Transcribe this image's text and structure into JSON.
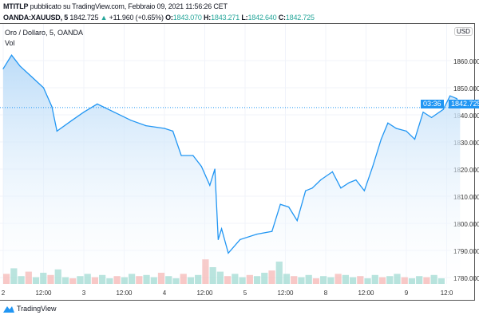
{
  "header": {
    "author": "MTITLP",
    "published": "pubblicato su TradingView.com, Febbraio 09, 2021 11:56:26 CET",
    "symbol": "OANDA:XAUUSD, 5",
    "last": "1842.725",
    "change": "+11.960 (+0.65%)",
    "o_label": "O:",
    "o": "1843.070",
    "h_label": "H:",
    "h": "1843.271",
    "l_label": "L:",
    "l": "1842.640",
    "c_label": "C:",
    "c": "1842.725"
  },
  "legend": {
    "title": "Oro / Dollaro, 5, OANDA",
    "vol": "Vol"
  },
  "currency": "USD",
  "price_label": "1842.725",
  "countdown": "03:36",
  "footer": {
    "brand": "TradingView"
  },
  "colors": {
    "line": "#2196f3",
    "fill": "#cfe6fb",
    "vol_up": "#8fd3c9",
    "vol_down": "#f4a9a6"
  },
  "chart_data": {
    "type": "area",
    "ylim": [
      1777,
      1872
    ],
    "yticks": [
      1780,
      1790,
      1800,
      1810,
      1820,
      1830,
      1840,
      1850,
      1860
    ],
    "xticks": [
      "2",
      "12:00",
      "3",
      "12:00",
      "4",
      "12:00",
      "5",
      "12:00",
      "8",
      "12:00",
      "9",
      "12:0"
    ],
    "grid": true,
    "series": [
      {
        "x": [
          "2 00:00",
          "2 02:30",
          "2 05:00",
          "2 08:30",
          "2 12:00",
          "2 14:30",
          "2 16:00",
          "2 20:30",
          "3 00:00",
          "3 04:00",
          "3 09:00",
          "3 14:00",
          "3 18:30",
          "4 00:00",
          "4 02:30",
          "4 05:00",
          "4 08:30",
          "4 11:00",
          "4 13:30",
          "4 15:00",
          "4 16:00",
          "4 17:00",
          "4 19:00",
          "4 22:30",
          "5 03:30",
          "5 08:00",
          "5 10:30",
          "5 13:00",
          "5 15:30",
          "5 18:00",
          "5 20:00",
          "5 22:30",
          "8 02:00",
          "8 04:30",
          "8 07:00",
          "8 09:00",
          "8 11:30",
          "8 14:00",
          "8 16:30",
          "8 18:30",
          "8 21:00",
          "9 00:00",
          "9 02:30",
          "9 05:00",
          "9 07:30",
          "9 11:00",
          "9 13:00",
          "9 15:00",
          "9 16:00"
        ],
        "y": [
          1857,
          1862,
          1858,
          1854,
          1850,
          1843,
          1834,
          1838,
          1841,
          1844,
          1841,
          1838,
          1836,
          1835,
          1834,
          1825,
          1825,
          1821,
          1814,
          1820,
          1794,
          1798,
          1789,
          1794,
          1796,
          1797,
          1807,
          1806,
          1801,
          1812,
          1813,
          1816,
          1819,
          1813,
          1815,
          1816,
          1812,
          1821,
          1831,
          1837,
          1835,
          1834,
          1831,
          1841,
          1839,
          1842,
          1847,
          1846,
          1842.7
        ]
      }
    ],
    "volume": [
      9,
      14,
      7,
      11,
      6,
      10,
      8,
      13,
      6,
      5,
      7,
      9,
      6,
      8,
      5,
      7,
      6,
      9,
      7,
      8,
      6,
      10,
      7,
      5,
      9,
      6,
      8,
      22,
      15,
      11,
      7,
      9,
      6,
      8,
      7,
      10,
      12,
      20,
      9,
      7,
      6,
      8,
      5,
      7,
      6,
      9,
      8,
      6,
      7,
      5,
      8,
      6,
      7,
      9,
      6,
      5,
      7,
      6,
      8,
      5
    ]
  }
}
